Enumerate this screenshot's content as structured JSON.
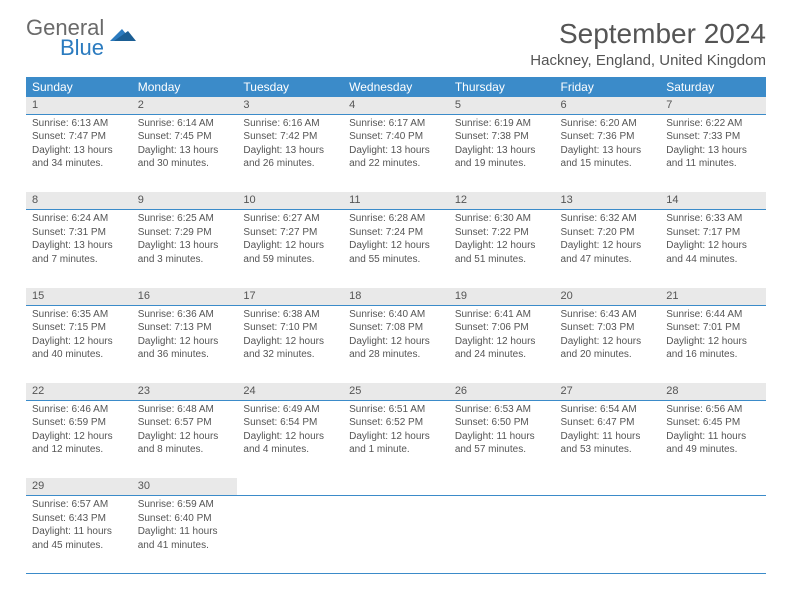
{
  "logo": {
    "line1": "General",
    "line2": "Blue"
  },
  "title": "September 2024",
  "location": "Hackney, England, United Kingdom",
  "colors": {
    "header_bg": "#3b8bc9",
    "header_text": "#ffffff",
    "daynum_bg": "#e9e9e9",
    "border": "#3b8bc9",
    "text": "#555555",
    "logo_gray": "#6a6a6a",
    "logo_blue": "#2b7bbf"
  },
  "typography": {
    "title_fontsize": 28,
    "location_fontsize": 15,
    "th_fontsize": 12,
    "cell_fontsize": 10,
    "daynum_fontsize": 11
  },
  "day_headers": [
    "Sunday",
    "Monday",
    "Tuesday",
    "Wednesday",
    "Thursday",
    "Friday",
    "Saturday"
  ],
  "weeks": [
    [
      {
        "n": "1",
        "sr": "6:13 AM",
        "ss": "7:47 PM",
        "dl": "13 hours and 34 minutes."
      },
      {
        "n": "2",
        "sr": "6:14 AM",
        "ss": "7:45 PM",
        "dl": "13 hours and 30 minutes."
      },
      {
        "n": "3",
        "sr": "6:16 AM",
        "ss": "7:42 PM",
        "dl": "13 hours and 26 minutes."
      },
      {
        "n": "4",
        "sr": "6:17 AM",
        "ss": "7:40 PM",
        "dl": "13 hours and 22 minutes."
      },
      {
        "n": "5",
        "sr": "6:19 AM",
        "ss": "7:38 PM",
        "dl": "13 hours and 19 minutes."
      },
      {
        "n": "6",
        "sr": "6:20 AM",
        "ss": "7:36 PM",
        "dl": "13 hours and 15 minutes."
      },
      {
        "n": "7",
        "sr": "6:22 AM",
        "ss": "7:33 PM",
        "dl": "13 hours and 11 minutes."
      }
    ],
    [
      {
        "n": "8",
        "sr": "6:24 AM",
        "ss": "7:31 PM",
        "dl": "13 hours and 7 minutes."
      },
      {
        "n": "9",
        "sr": "6:25 AM",
        "ss": "7:29 PM",
        "dl": "13 hours and 3 minutes."
      },
      {
        "n": "10",
        "sr": "6:27 AM",
        "ss": "7:27 PM",
        "dl": "12 hours and 59 minutes."
      },
      {
        "n": "11",
        "sr": "6:28 AM",
        "ss": "7:24 PM",
        "dl": "12 hours and 55 minutes."
      },
      {
        "n": "12",
        "sr": "6:30 AM",
        "ss": "7:22 PM",
        "dl": "12 hours and 51 minutes."
      },
      {
        "n": "13",
        "sr": "6:32 AM",
        "ss": "7:20 PM",
        "dl": "12 hours and 47 minutes."
      },
      {
        "n": "14",
        "sr": "6:33 AM",
        "ss": "7:17 PM",
        "dl": "12 hours and 44 minutes."
      }
    ],
    [
      {
        "n": "15",
        "sr": "6:35 AM",
        "ss": "7:15 PM",
        "dl": "12 hours and 40 minutes."
      },
      {
        "n": "16",
        "sr": "6:36 AM",
        "ss": "7:13 PM",
        "dl": "12 hours and 36 minutes."
      },
      {
        "n": "17",
        "sr": "6:38 AM",
        "ss": "7:10 PM",
        "dl": "12 hours and 32 minutes."
      },
      {
        "n": "18",
        "sr": "6:40 AM",
        "ss": "7:08 PM",
        "dl": "12 hours and 28 minutes."
      },
      {
        "n": "19",
        "sr": "6:41 AM",
        "ss": "7:06 PM",
        "dl": "12 hours and 24 minutes."
      },
      {
        "n": "20",
        "sr": "6:43 AM",
        "ss": "7:03 PM",
        "dl": "12 hours and 20 minutes."
      },
      {
        "n": "21",
        "sr": "6:44 AM",
        "ss": "7:01 PM",
        "dl": "12 hours and 16 minutes."
      }
    ],
    [
      {
        "n": "22",
        "sr": "6:46 AM",
        "ss": "6:59 PM",
        "dl": "12 hours and 12 minutes."
      },
      {
        "n": "23",
        "sr": "6:48 AM",
        "ss": "6:57 PM",
        "dl": "12 hours and 8 minutes."
      },
      {
        "n": "24",
        "sr": "6:49 AM",
        "ss": "6:54 PM",
        "dl": "12 hours and 4 minutes."
      },
      {
        "n": "25",
        "sr": "6:51 AM",
        "ss": "6:52 PM",
        "dl": "12 hours and 1 minute."
      },
      {
        "n": "26",
        "sr": "6:53 AM",
        "ss": "6:50 PM",
        "dl": "11 hours and 57 minutes."
      },
      {
        "n": "27",
        "sr": "6:54 AM",
        "ss": "6:47 PM",
        "dl": "11 hours and 53 minutes."
      },
      {
        "n": "28",
        "sr": "6:56 AM",
        "ss": "6:45 PM",
        "dl": "11 hours and 49 minutes."
      }
    ],
    [
      {
        "n": "29",
        "sr": "6:57 AM",
        "ss": "6:43 PM",
        "dl": "11 hours and 45 minutes."
      },
      {
        "n": "30",
        "sr": "6:59 AM",
        "ss": "6:40 PM",
        "dl": "11 hours and 41 minutes."
      },
      null,
      null,
      null,
      null,
      null
    ]
  ],
  "labels": {
    "sunrise": "Sunrise:",
    "sunset": "Sunset:",
    "daylight": "Daylight:"
  }
}
